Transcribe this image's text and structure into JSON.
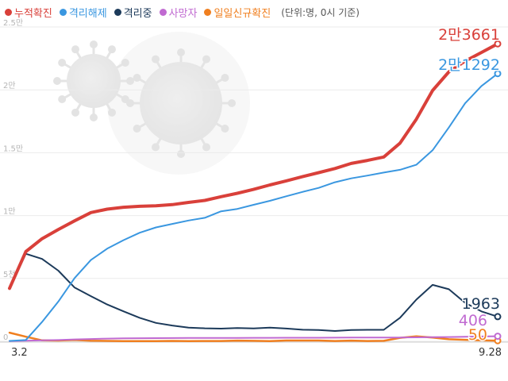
{
  "legend": [
    {
      "label": "누적확진",
      "color": "#d9403a"
    },
    {
      "label": "격리해제",
      "color": "#3a97e0"
    },
    {
      "label": "격리중",
      "color": "#1c3a5a"
    },
    {
      "label": "사망자",
      "color": "#c06ad1"
    },
    {
      "label": "일일신규확진",
      "color": "#f07f1f"
    }
  ],
  "unit_note": "(단위:명, 0시 기준)",
  "chart_data": {
    "type": "line",
    "x": [
      "3.2",
      "3.8",
      "3.15",
      "3.22",
      "3.29",
      "4.5",
      "4.12",
      "4.19",
      "4.26",
      "5.3",
      "5.10",
      "5.17",
      "5.24",
      "5.31",
      "6.7",
      "6.14",
      "6.21",
      "6.28",
      "7.5",
      "7.12",
      "7.19",
      "7.26",
      "8.2",
      "8.9",
      "8.16",
      "8.23",
      "8.30",
      "9.6",
      "9.13",
      "9.20",
      "9.28"
    ],
    "x_tick_labels": [
      "3.2",
      "9.28"
    ],
    "y_tick_labels": [
      "0",
      "5천",
      "1만",
      "1.5만",
      "2만",
      "2.5만"
    ],
    "ylim": [
      0,
      25000
    ],
    "grid": true,
    "series": [
      {
        "name": "누적확진",
        "color": "#d9403a",
        "values": [
          4212,
          7134,
          8162,
          8897,
          9583,
          10237,
          10512,
          10661,
          10738,
          10780,
          10874,
          11050,
          11206,
          11503,
          11776,
          12085,
          12438,
          12757,
          13091,
          13417,
          13745,
          14150,
          14389,
          14660,
          15761,
          17665,
          19947,
          21432,
          22285,
          22975,
          23661
        ]
      },
      {
        "name": "격리해제",
        "color": "#3a97e0",
        "values": [
          30,
          100,
          1540,
          3166,
          5033,
          6463,
          7368,
          8042,
          8635,
          9059,
          9340,
          9610,
          9823,
          10340,
          10531,
          10856,
          11172,
          11537,
          11880,
          12204,
          12653,
          12959,
          13183,
          13424,
          13642,
          14040,
          15198,
          17005,
          18930,
          20305,
          21292
        ]
      },
      {
        "name": "격리중",
        "color": "#1c3a5a",
        "values": [
          4175,
          6961,
          6550,
          5617,
          4275,
          3591,
          2930,
          2385,
          1868,
          1465,
          1259,
          1095,
          1033,
          1010,
          1061,
          1021,
          1090,
          1017,
          924,
          901,
          818,
          897,
          917,
          916,
          1876,
          3314,
          4486,
          4140,
          3063,
          2381,
          1963
        ]
      },
      {
        "name": "사망자",
        "color": "#c06ad1",
        "values": [
          22,
          50,
          75,
          104,
          152,
          183,
          214,
          234,
          244,
          252,
          256,
          262,
          267,
          270,
          273,
          277,
          280,
          282,
          285,
          287,
          289,
          297,
          301,
          304,
          305,
          313,
          326,
          344,
          358,
          385,
          406
        ]
      },
      {
        "name": "일일신규확진",
        "color": "#f07f1f",
        "values": [
          686,
          367,
          76,
          64,
          105,
          47,
          32,
          18,
          10,
          13,
          34,
          15,
          23,
          27,
          57,
          37,
          17,
          62,
          61,
          62,
          26,
          58,
          23,
          36,
          279,
          397,
          299,
          167,
          121,
          82,
          50
        ]
      }
    ],
    "end_labels": [
      {
        "text": "2만3661",
        "color": "#d9403a"
      },
      {
        "text": "2만1292",
        "color": "#3a97e0"
      },
      {
        "text": "1963",
        "color": "#1c3a5a"
      },
      {
        "text": "406",
        "color": "#c06ad1"
      },
      {
        "text": "50",
        "color": "#f07f1f"
      }
    ]
  }
}
